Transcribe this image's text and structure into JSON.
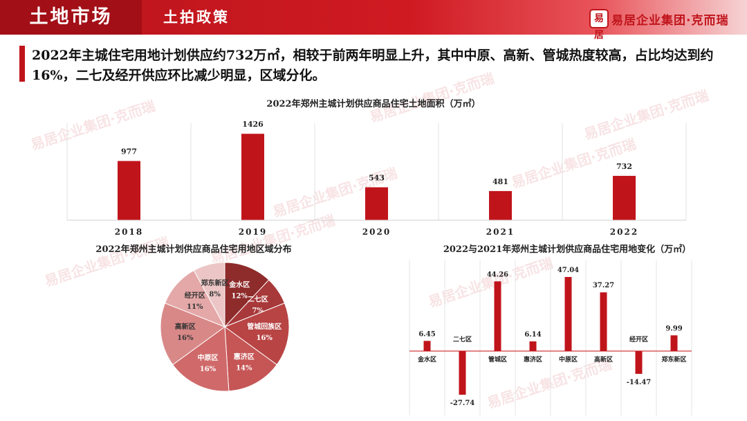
{
  "header": {
    "section_title": "土地市场",
    "subtitle": "土拍政策",
    "logo_mark": "易居",
    "logo_text": "易居企业集团·克而瑞"
  },
  "headline": "2022年主城住宅用地计划供应约732万㎡，相较于前两年明显上升，其中中原、高新、管城热度较高，占比均达到约16%，二七及经开供应环比减少明显，区域分化。",
  "watermark_text": "易居企业集团·克而瑞",
  "colors": {
    "brand_red": "#c0141b",
    "bar_red": "#c0141b"
  },
  "chart_data": [
    {
      "type": "bar",
      "title": "2022年郑州主城计划供应商品住宅土地面积（万㎡）",
      "categories": [
        "2018",
        "2019",
        "2020",
        "2021",
        "2022"
      ],
      "values": [
        977,
        1426,
        543,
        481,
        732
      ],
      "ylim": [
        0,
        1600
      ],
      "grid": "vertical separators"
    },
    {
      "type": "pie",
      "title": "2022年郑州主城计划供应商品住宅用地区域分布",
      "labels": [
        "金水区",
        "二七区",
        "管城回族区",
        "惠济区",
        "中原区",
        "高新区",
        "经开区",
        "郑东新区"
      ],
      "values": [
        12,
        7,
        16,
        14,
        16,
        16,
        11,
        8
      ],
      "value_labels": [
        "12%",
        "7%",
        "16%",
        "14%",
        "16%",
        "16%",
        "11%",
        "8%"
      ],
      "colors": [
        "#8e2b2b",
        "#a8393a",
        "#b84444",
        "#c65656",
        "#d06a6a",
        "#d98888",
        "#e4a8a8",
        "#ecc6c6"
      ]
    },
    {
      "type": "bar",
      "title": "2022与2021年郑州主城计划供应商品住宅用地变化（万㎡）",
      "categories": [
        "金水区",
        "二七区",
        "管城区",
        "惠济区",
        "中原区",
        "高新区",
        "经开区",
        "郑东新区"
      ],
      "values": [
        6.45,
        -27.74,
        44.26,
        6.14,
        47.04,
        37.27,
        -14.47,
        9.99
      ],
      "value_labels": [
        "6.45",
        "-27.74",
        "44.26",
        "6.14",
        "47.04",
        "37.27",
        "-14.47",
        "9.99"
      ],
      "ylim": [
        -35,
        55
      ],
      "grid": "vertical separators"
    }
  ]
}
